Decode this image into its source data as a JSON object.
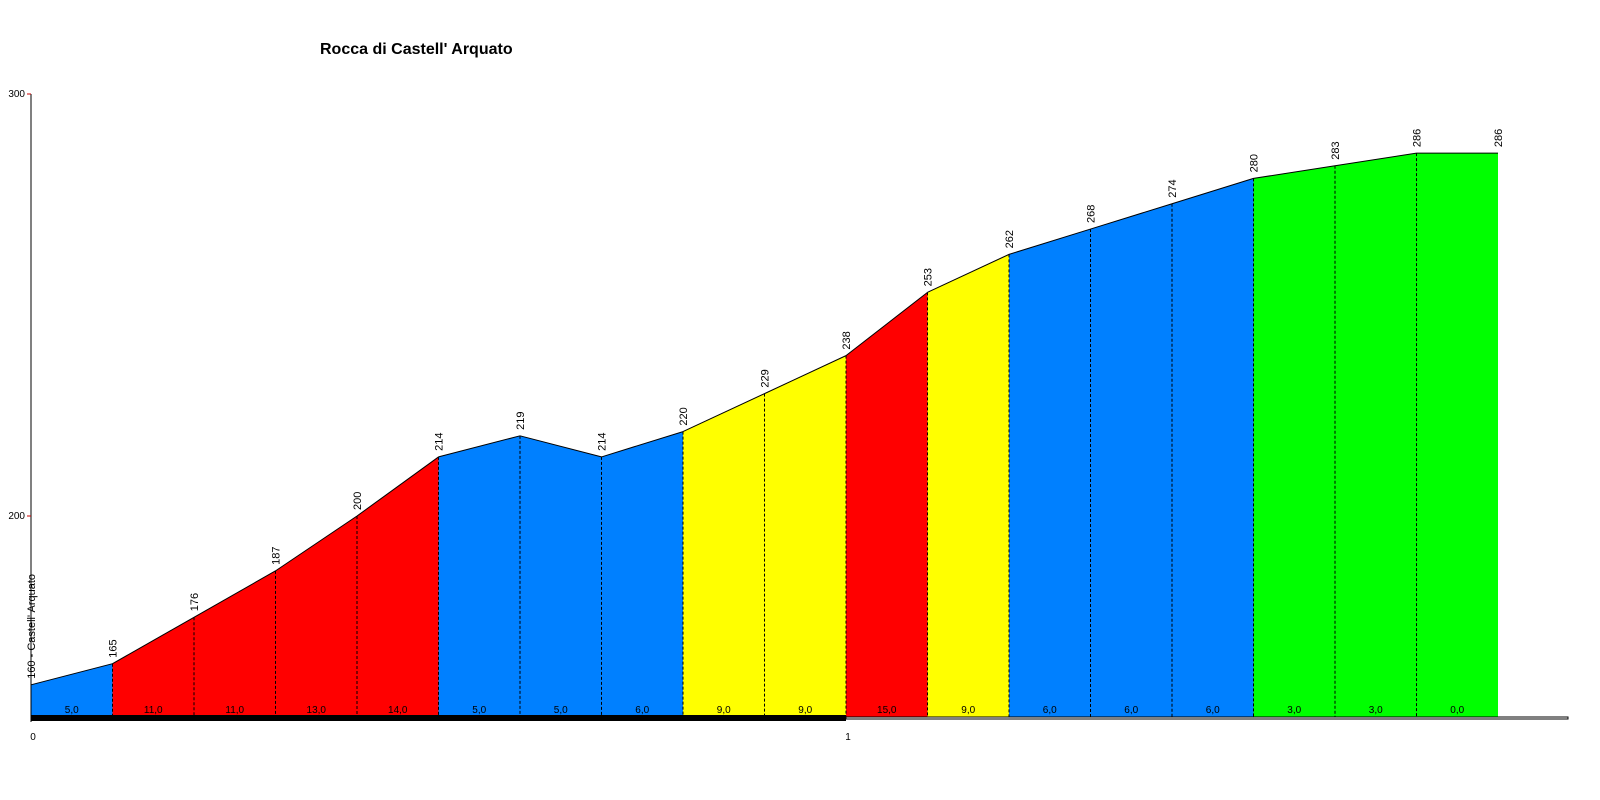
{
  "chart_data": {
    "type": "area",
    "title": "Rocca di Castell' Arquato",
    "start_label": "160 - Castell' Arquato",
    "x_unit": "km",
    "y_ticks": [
      "300",
      "200"
    ],
    "x_ticks": [
      "0",
      "1"
    ],
    "ylim": [
      151,
      300
    ],
    "xlim": [
      0,
      1.75
    ],
    "grid": false,
    "distances": [
      0,
      0.1,
      0.2,
      0.3,
      0.4,
      0.5,
      0.6,
      0.7,
      0.8,
      0.9,
      1.0,
      1.1,
      1.2,
      1.3,
      1.4,
      1.5,
      1.6,
      1.7,
      1.8
    ],
    "elevations": [
      160,
      165,
      176,
      187,
      200,
      214,
      219,
      214,
      220,
      229,
      238,
      253,
      262,
      268,
      274,
      280,
      283,
      286,
      286
    ],
    "elevation_labels": [
      "165",
      "176",
      "187",
      "200",
      "214",
      "219",
      "214",
      "220",
      "229",
      "238",
      "253",
      "262",
      "268",
      "274",
      "280",
      "283",
      "286",
      "286"
    ],
    "segment_grades": [
      "5,0",
      "11,0",
      "11,0",
      "13,0",
      "14,0",
      "5,0",
      "5,0",
      "6,0",
      "9,0",
      "9,0",
      "15,0",
      "9,0",
      "6,0",
      "6,0",
      "6,0",
      "3,0",
      "3,0",
      "0,0"
    ],
    "colors": {
      "blue": "#0080ff",
      "red": "#ff0000",
      "yellow": "#ffff00",
      "green": "#00ff00",
      "axis": "#000000",
      "tick_mark": "#cc0000"
    },
    "segment_colors": [
      "blue",
      "red",
      "red",
      "red",
      "red",
      "blue",
      "blue",
      "blue",
      "yellow",
      "yellow",
      "red",
      "yellow",
      "blue",
      "blue",
      "blue",
      "green",
      "green",
      "green"
    ]
  }
}
